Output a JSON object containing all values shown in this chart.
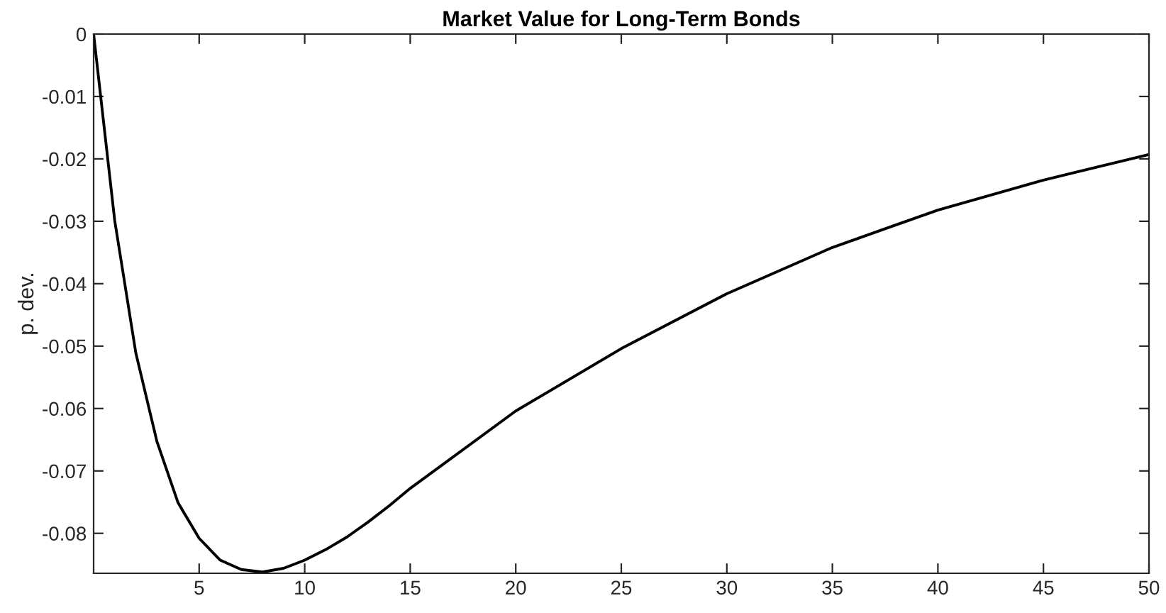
{
  "chart_data": {
    "type": "line",
    "title": "Market Value for Long-Term Bonds",
    "ylabel": "p. dev.",
    "x": [
      0,
      1,
      2,
      3,
      4,
      5,
      6,
      7,
      8,
      9,
      10,
      11,
      12,
      13,
      14,
      15,
      20,
      25,
      30,
      35,
      40,
      45,
      50
    ],
    "series": [
      {
        "color": "#000000",
        "values": [
          0,
          -0.0299,
          -0.0511,
          -0.0653,
          -0.0751,
          -0.0808,
          -0.0843,
          -0.0858,
          -0.0862,
          -0.0856,
          -0.0843,
          -0.0826,
          -0.0806,
          -0.0782,
          -0.0756,
          -0.0728,
          -0.0604,
          -0.0504,
          -0.0416,
          -0.0342,
          -0.0282,
          -0.0234,
          -0.0193
        ]
      }
    ],
    "xlim": [
      0,
      50
    ],
    "xticks": [
      5,
      10,
      15,
      20,
      25,
      30,
      35,
      40,
      45,
      50
    ],
    "ylim": [
      -0.0864,
      0
    ],
    "yticks": [
      -0.08,
      -0.07,
      -0.06,
      -0.05,
      -0.04,
      -0.03,
      -0.02,
      -0.01,
      0
    ],
    "grid": false,
    "legend": false,
    "marker": "none",
    "line_style": "solid"
  }
}
